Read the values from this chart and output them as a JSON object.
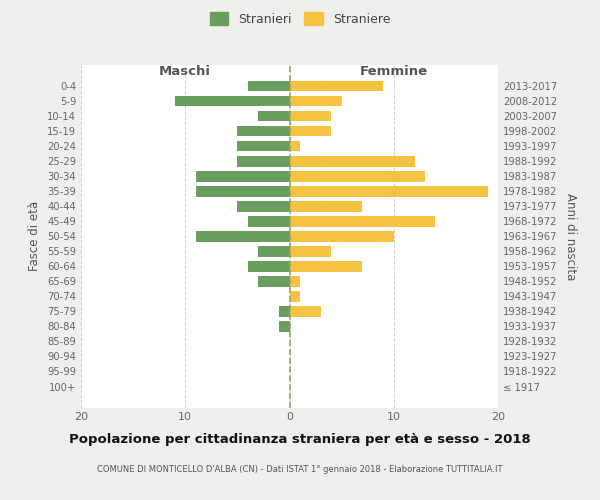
{
  "age_groups": [
    "0-4",
    "5-9",
    "10-14",
    "15-19",
    "20-24",
    "25-29",
    "30-34",
    "35-39",
    "40-44",
    "45-49",
    "50-54",
    "55-59",
    "60-64",
    "65-69",
    "70-74",
    "75-79",
    "80-84",
    "85-89",
    "90-94",
    "95-99",
    "100+"
  ],
  "birth_years": [
    "2013-2017",
    "2008-2012",
    "2003-2007",
    "1998-2002",
    "1993-1997",
    "1988-1992",
    "1983-1987",
    "1978-1982",
    "1973-1977",
    "1968-1972",
    "1963-1967",
    "1958-1962",
    "1953-1957",
    "1948-1952",
    "1943-1947",
    "1938-1942",
    "1933-1937",
    "1928-1932",
    "1923-1927",
    "1918-1922",
    "≤ 1917"
  ],
  "maschi": [
    4,
    11,
    3,
    5,
    5,
    5,
    9,
    9,
    5,
    4,
    9,
    3,
    4,
    3,
    0,
    1,
    1,
    0,
    0,
    0,
    0
  ],
  "femmine": [
    9,
    5,
    4,
    4,
    1,
    12,
    13,
    19,
    7,
    14,
    10,
    4,
    7,
    1,
    1,
    3,
    0,
    0,
    0,
    0,
    0
  ],
  "male_color": "#6a9e5e",
  "female_color": "#f5c242",
  "background_color": "#f0f0eb",
  "plot_bg_color": "#ffffff",
  "grid_color": "#d0d0c8",
  "title": "Popolazione per cittadinanza straniera per età e sesso - 2018",
  "subtitle": "COMUNE DI MONTICELLO D'ALBA (CN) - Dati ISTAT 1° gennaio 2018 - Elaborazione TUTTITALIA.IT",
  "xlabel_left": "Maschi",
  "xlabel_right": "Femmine",
  "ylabel_left": "Fasce di età",
  "ylabel_right": "Anni di nascita",
  "legend_male": "Stranieri",
  "legend_female": "Straniere",
  "xlim": 20
}
